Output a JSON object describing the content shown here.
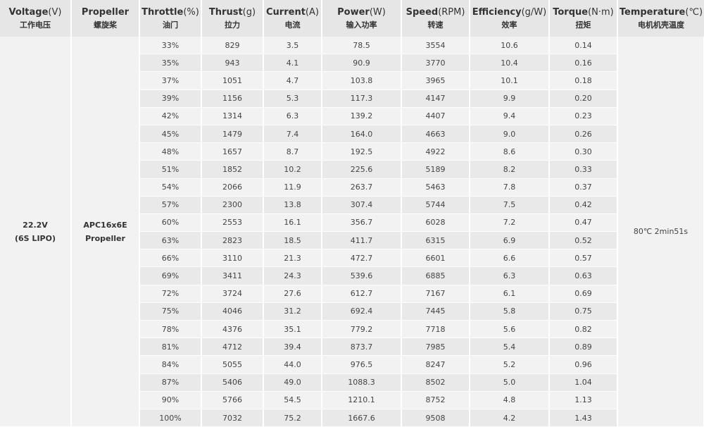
{
  "headers": [
    {
      "en": "Voltage",
      "unit": "(V)",
      "cn": "工作电压"
    },
    {
      "en": "Propeller",
      "unit": "",
      "cn": "螺旋桨"
    },
    {
      "en": "Throttle",
      "unit": "(%)",
      "cn": "油门"
    },
    {
      "en": "Thrust",
      "unit": "(g)",
      "cn": "拉力"
    },
    {
      "en": "Current",
      "unit": "(A)",
      "cn": "电流"
    },
    {
      "en": "Power",
      "unit": "(W)",
      "cn": "输入功率"
    },
    {
      "en": "Speed",
      "unit": "(RPM)",
      "cn": "转速"
    },
    {
      "en": "Efficiency",
      "unit": "(g/W)",
      "cn": "效率"
    },
    {
      "en": "Torque",
      "unit": "(N·m)",
      "cn": "扭矩"
    },
    {
      "en": "Temperature",
      "unit": "(℃)",
      "cn": "电机机壳温度"
    }
  ],
  "voltage": {
    "line1": "22.2V",
    "line2": "(6S LIPO)"
  },
  "propeller": {
    "line1": "APC16x6E",
    "line2": "Propeller"
  },
  "temperature": "80℃  2min51s",
  "rows": [
    [
      "33%",
      "829",
      "3.5",
      "78.5",
      "3554",
      "10.6",
      "0.14"
    ],
    [
      "35%",
      "943",
      "4.1",
      "90.9",
      "3770",
      "10.4",
      "0.16"
    ],
    [
      "37%",
      "1051",
      "4.7",
      "103.8",
      "3965",
      "10.1",
      "0.18"
    ],
    [
      "39%",
      "1156",
      "5.3",
      "117.3",
      "4147",
      "9.9",
      "0.20"
    ],
    [
      "42%",
      "1314",
      "6.3",
      "139.2",
      "4407",
      "9.4",
      "0.23"
    ],
    [
      "45%",
      "1479",
      "7.4",
      "164.0",
      "4663",
      "9.0",
      "0.26"
    ],
    [
      "48%",
      "1657",
      "8.7",
      "192.5",
      "4922",
      "8.6",
      "0.30"
    ],
    [
      "51%",
      "1852",
      "10.2",
      "225.6",
      "5189",
      "8.2",
      "0.33"
    ],
    [
      "54%",
      "2066",
      "11.9",
      "263.7",
      "5463",
      "7.8",
      "0.37"
    ],
    [
      "57%",
      "2300",
      "13.8",
      "307.4",
      "5744",
      "7.5",
      "0.42"
    ],
    [
      "60%",
      "2553",
      "16.1",
      "356.7",
      "6028",
      "7.2",
      "0.47"
    ],
    [
      "63%",
      "2823",
      "18.5",
      "411.7",
      "6315",
      "6.9",
      "0.52"
    ],
    [
      "66%",
      "3110",
      "21.3",
      "472.7",
      "6601",
      "6.6",
      "0.57"
    ],
    [
      "69%",
      "3411",
      "24.3",
      "539.6",
      "6885",
      "6.3",
      "0.63"
    ],
    [
      "72%",
      "3724",
      "27.6",
      "612.7",
      "7167",
      "6.1",
      "0.69"
    ],
    [
      "75%",
      "4046",
      "31.2",
      "692.4",
      "7445",
      "5.8",
      "0.75"
    ],
    [
      "78%",
      "4376",
      "35.1",
      "779.2",
      "7718",
      "5.6",
      "0.82"
    ],
    [
      "81%",
      "4712",
      "39.4",
      "873.7",
      "7985",
      "5.4",
      "0.89"
    ],
    [
      "84%",
      "5055",
      "44.0",
      "976.5",
      "8247",
      "5.2",
      "0.96"
    ],
    [
      "87%",
      "5406",
      "49.0",
      "1088.3",
      "8502",
      "5.0",
      "1.04"
    ],
    [
      "90%",
      "5766",
      "54.5",
      "1210.1",
      "8752",
      "4.8",
      "1.13"
    ],
    [
      "100%",
      "7032",
      "75.2",
      "1667.6",
      "9508",
      "4.2",
      "1.43"
    ]
  ]
}
